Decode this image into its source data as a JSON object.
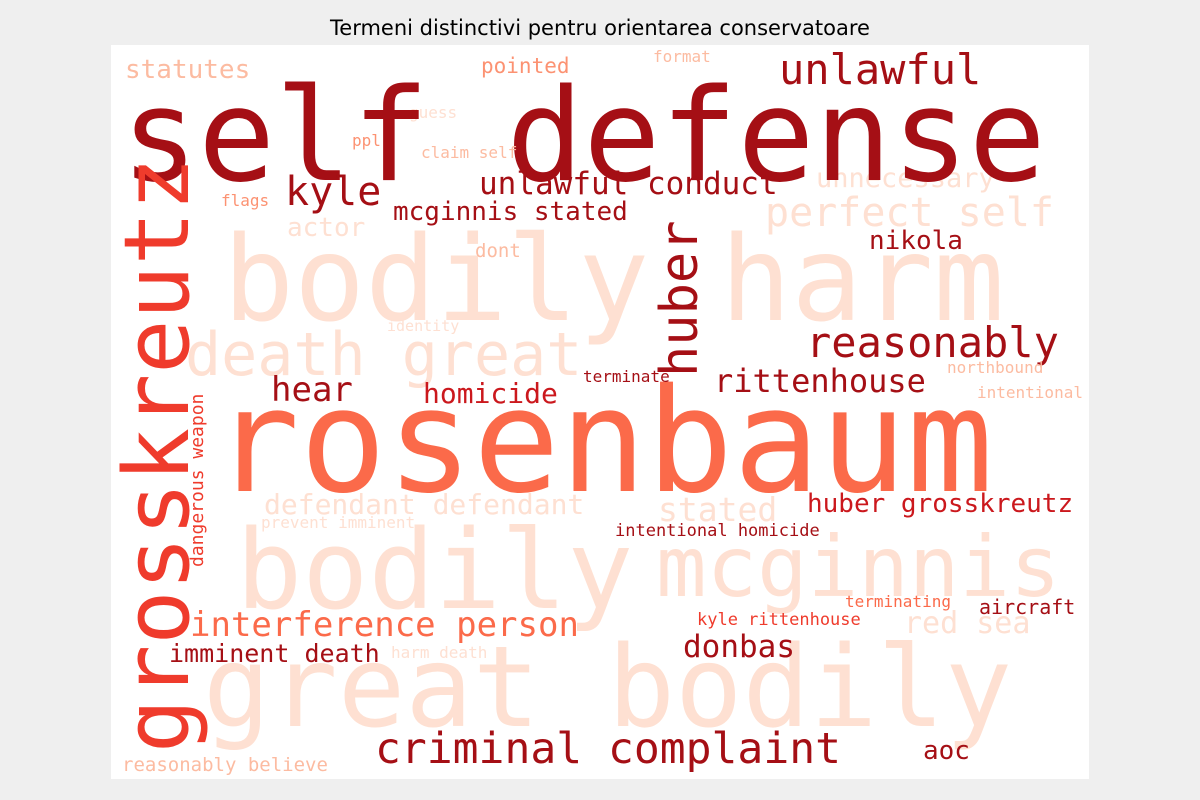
{
  "title": "Termeni distinctivi pentru orientarea conservatoare",
  "colors": {
    "palette": "Reds",
    "darkest": "#a50f15",
    "dark": "#cb181d",
    "mid": "#ef3b2c",
    "medium": "#fb6a4a",
    "light": "#fc9272",
    "lighter": "#fcbba1",
    "faint": "#fee0d2",
    "background": "#ffffff",
    "page": "#efefef"
  },
  "words": [
    {
      "text": "self defense",
      "color": "#a50f15"
    },
    {
      "text": "rosenbaum",
      "color": "#fb6a4a"
    },
    {
      "text": "bodily harm",
      "color": "#fee0d2"
    },
    {
      "text": "bodily",
      "color": "#fee0d2"
    },
    {
      "text": "great bodily",
      "color": "#fee0d2"
    },
    {
      "text": "mcginnis",
      "color": "#fee0d2"
    },
    {
      "text": "grosskreutz",
      "color": "#ef3b2c"
    },
    {
      "text": "death great",
      "color": "#fee0d2"
    },
    {
      "text": "huber",
      "color": "#a50f15"
    },
    {
      "text": "unlawful",
      "color": "#a50f15"
    },
    {
      "text": "statutes",
      "color": "#fcbba1"
    },
    {
      "text": "pointed",
      "color": "#fc9272"
    },
    {
      "text": "format",
      "color": "#fcbba1"
    },
    {
      "text": "guess",
      "color": "#fee0d2"
    },
    {
      "text": "ppl",
      "color": "#fc9272"
    },
    {
      "text": "claim self",
      "color": "#fcbba1"
    },
    {
      "text": "kyle",
      "color": "#a50f15"
    },
    {
      "text": "unlawful conduct",
      "color": "#a50f15"
    },
    {
      "text": "unnecessary",
      "color": "#fee0d2"
    },
    {
      "text": "flags",
      "color": "#fc9272"
    },
    {
      "text": "mcginnis stated",
      "color": "#a50f15"
    },
    {
      "text": "perfect self",
      "color": "#fee0d2"
    },
    {
      "text": "actor",
      "color": "#fee0d2"
    },
    {
      "text": "nikola",
      "color": "#a50f15"
    },
    {
      "text": "dont",
      "color": "#fcbba1"
    },
    {
      "text": "identity",
      "color": "#fee0d2"
    },
    {
      "text": "reasonably",
      "color": "#a50f15"
    },
    {
      "text": "northbound",
      "color": "#fcbba1"
    },
    {
      "text": "terminate",
      "color": "#a50f15"
    },
    {
      "text": "hear",
      "color": "#a50f15"
    },
    {
      "text": "homicide",
      "color": "#cb181d"
    },
    {
      "text": "rittenhouse",
      "color": "#a50f15"
    },
    {
      "text": "intentional",
      "color": "#fcbba1"
    },
    {
      "text": "dangerous weapon",
      "color": "#ef3b2c"
    },
    {
      "text": "defendant defendant",
      "color": "#fee0d2"
    },
    {
      "text": "stated",
      "color": "#fee0d2"
    },
    {
      "text": "huber grosskreutz",
      "color": "#cb181d"
    },
    {
      "text": "prevent imminent",
      "color": "#fee0d2"
    },
    {
      "text": "intentional homicide",
      "color": "#a50f15"
    },
    {
      "text": "interference person",
      "color": "#fb6a4a"
    },
    {
      "text": "terminating",
      "color": "#fb6a4a"
    },
    {
      "text": "aircraft",
      "color": "#a50f15"
    },
    {
      "text": "kyle rittenhouse",
      "color": "#ef3b2c"
    },
    {
      "text": "red sea",
      "color": "#fee0d2"
    },
    {
      "text": "donbas",
      "color": "#a50f15"
    },
    {
      "text": "imminent death",
      "color": "#a50f15"
    },
    {
      "text": "harm death",
      "color": "#fee0d2"
    },
    {
      "text": "criminal complaint",
      "color": "#a50f15"
    },
    {
      "text": "aoc",
      "color": "#a50f15"
    },
    {
      "text": "reasonably believe",
      "color": "#fcbba1"
    }
  ]
}
